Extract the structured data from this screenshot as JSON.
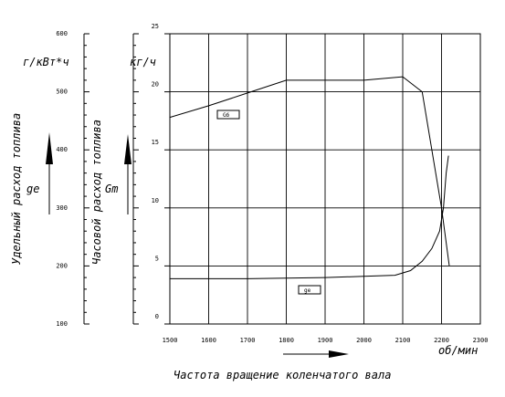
{
  "chart_data": {
    "type": "line",
    "xlabel": "Частота вращение коленчатого вала",
    "x_unit": "об/мин",
    "x_ticks": [
      1500,
      1600,
      1700,
      1800,
      1900,
      2000,
      2100,
      2200,
      2300
    ],
    "xlim": [
      1500,
      2300
    ],
    "left_axis": {
      "title": "Удельный расход топлива",
      "unit": "г/кВт*ч",
      "symbol": "ge",
      "ticks": [
        100,
        200,
        300,
        400,
        500,
        600
      ],
      "ylim": [
        100,
        600
      ]
    },
    "middle_axis": {
      "title": "Часовой расход топлива",
      "unit": "",
      "symbol": "Gm",
      "ticks": []
    },
    "right_axis": {
      "unit": "кг/ч",
      "ticks": [
        0,
        5,
        10,
        15,
        20,
        25
      ],
      "ylim": [
        0,
        25
      ]
    },
    "grid": true,
    "series": [
      {
        "name": "Gб",
        "axis": "right",
        "points": [
          [
            1500,
            17.8
          ],
          [
            1600,
            18.8
          ],
          [
            1700,
            19.9
          ],
          [
            1800,
            21.0
          ],
          [
            1900,
            21.0
          ],
          [
            2000,
            21.0
          ],
          [
            2100,
            21.3
          ],
          [
            2150,
            20.0
          ],
          [
            2180,
            14.0
          ],
          [
            2200,
            10.0
          ],
          [
            2220,
            5.0
          ]
        ]
      },
      {
        "name": "ge",
        "axis": "right",
        "points": [
          [
            1500,
            3.9
          ],
          [
            1700,
            3.9
          ],
          [
            1900,
            4.0
          ],
          [
            2000,
            4.1
          ],
          [
            2080,
            4.2
          ],
          [
            2120,
            4.6
          ],
          [
            2150,
            5.4
          ],
          [
            2175,
            6.5
          ],
          [
            2195,
            8.0
          ],
          [
            2205,
            10.0
          ],
          [
            2212,
            13.0
          ],
          [
            2218,
            14.5
          ]
        ]
      }
    ]
  }
}
